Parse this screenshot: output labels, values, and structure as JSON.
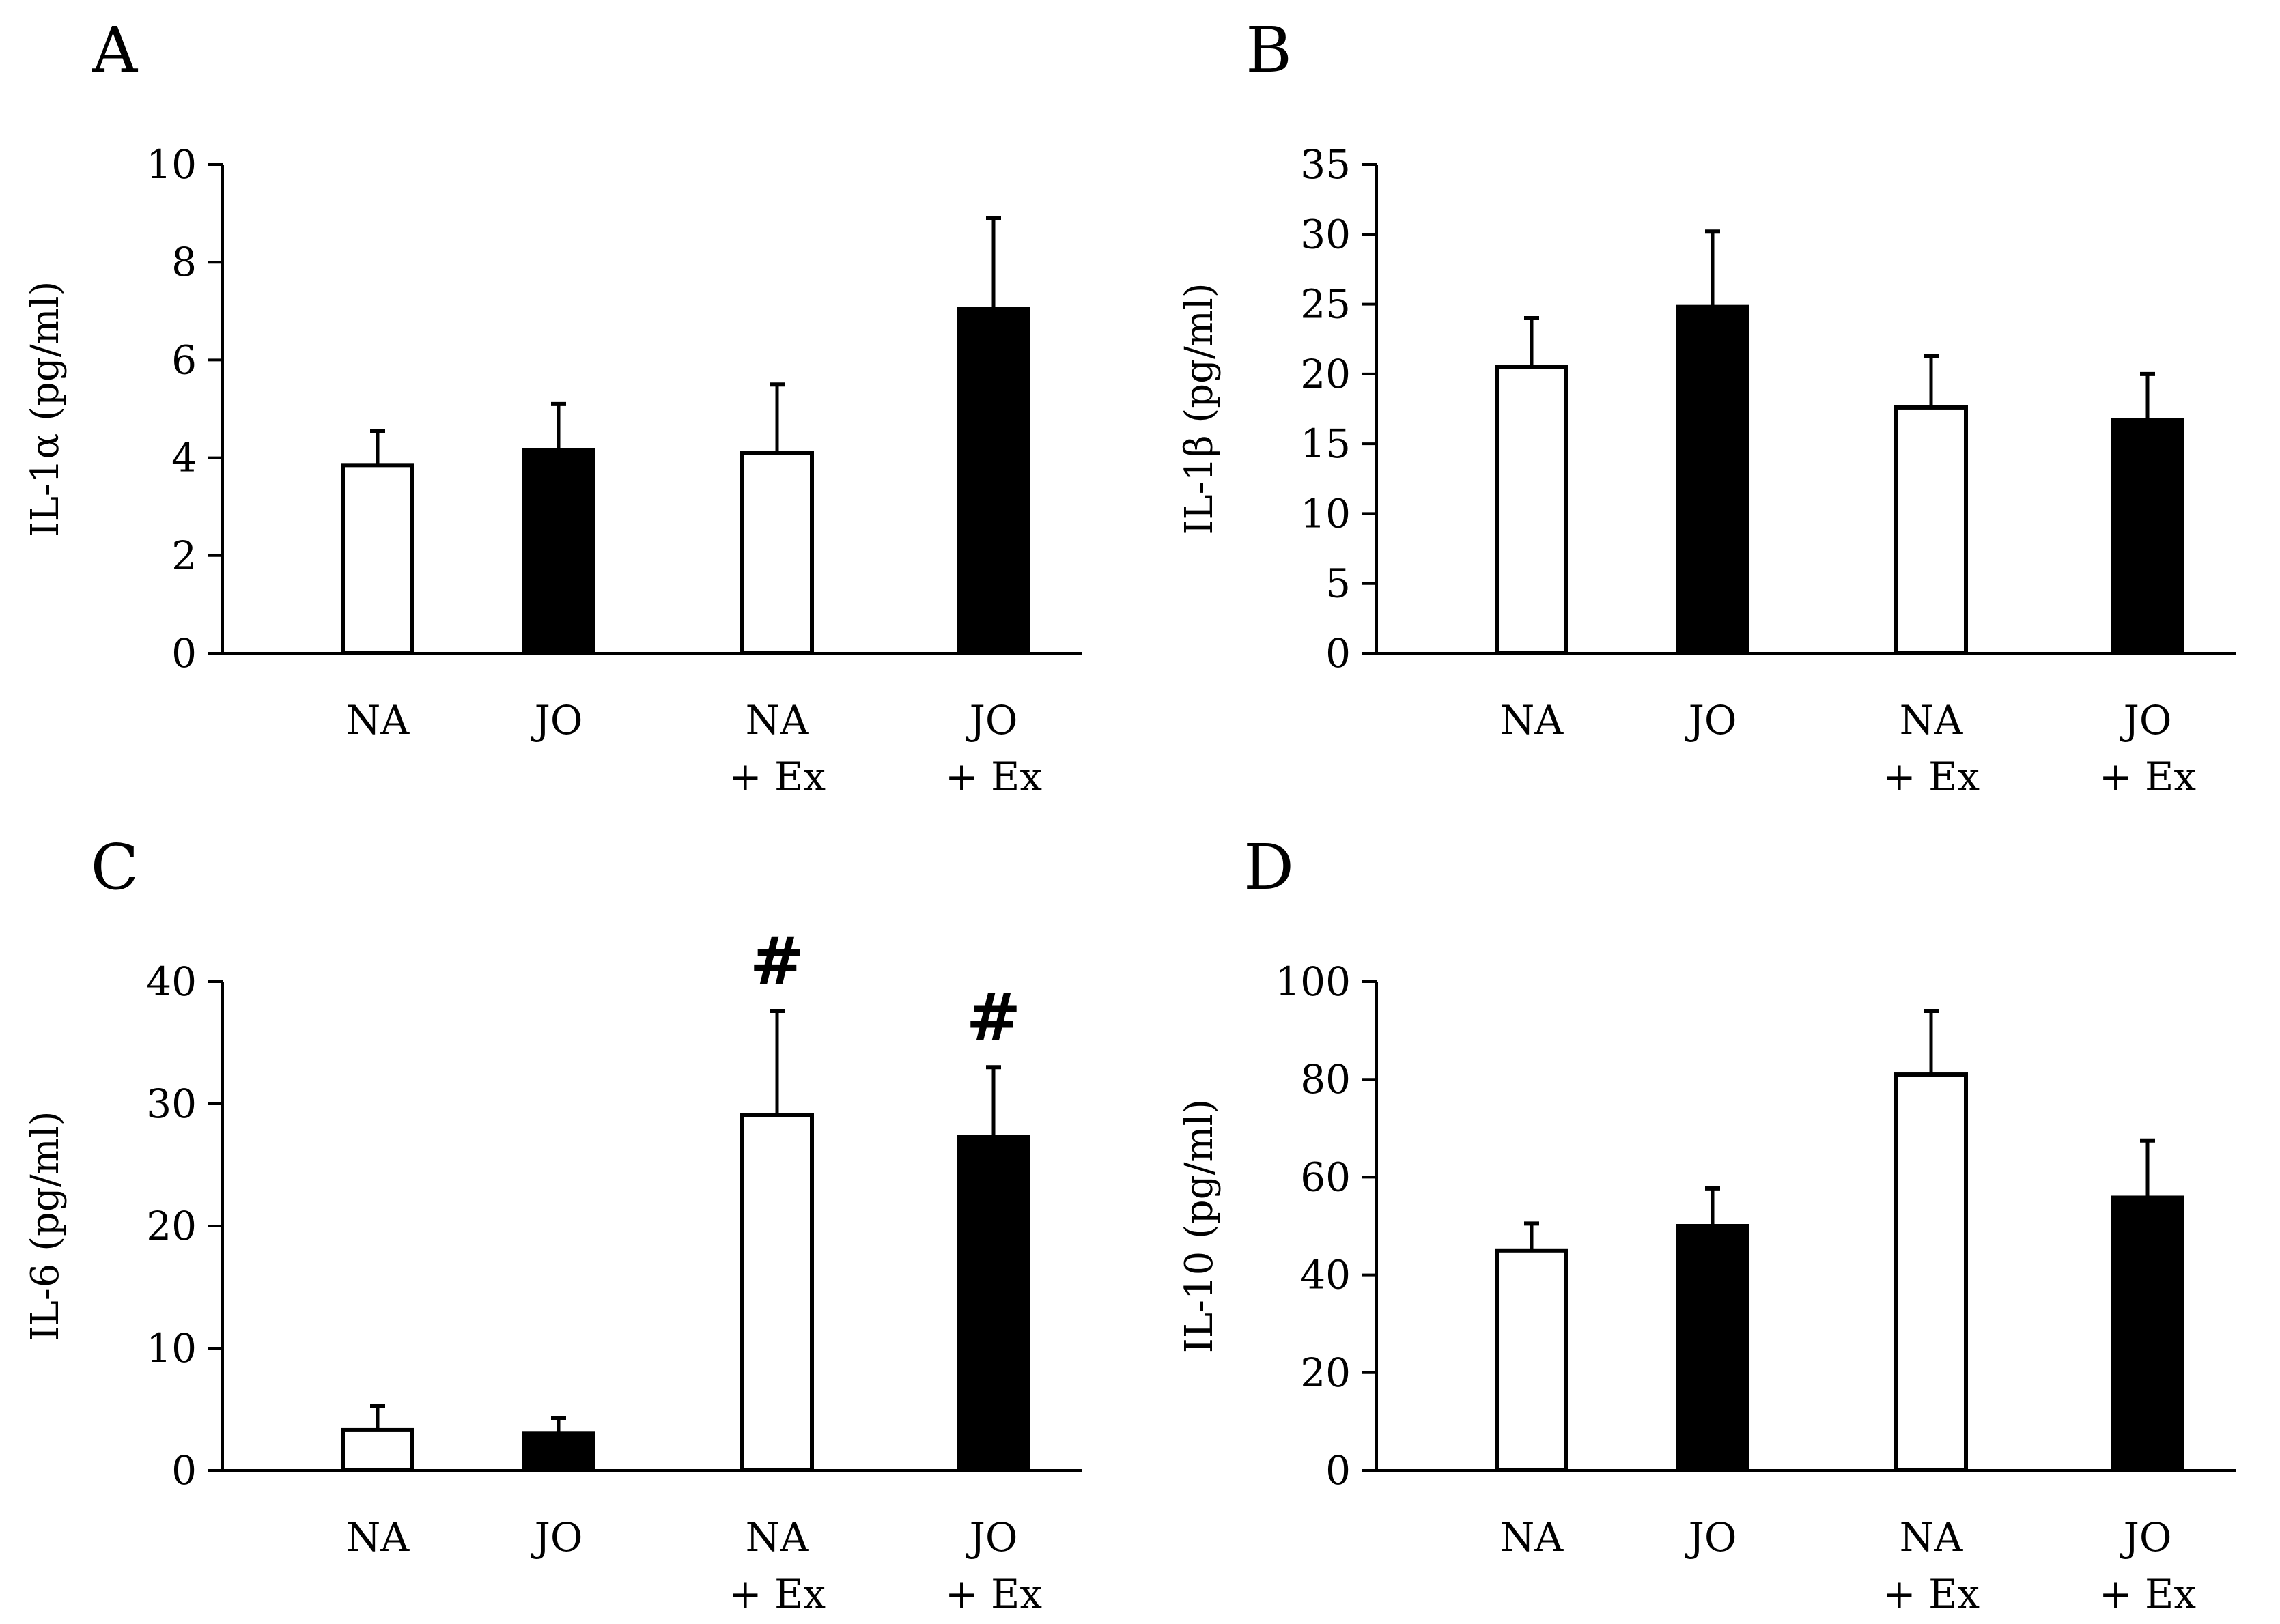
{
  "figure": {
    "fill_colors": {
      "NA": "#ffffff",
      "JO": "#000000"
    },
    "stroke_color": "#000000"
  },
  "chart_data": [
    {
      "panel": "A",
      "type": "bar",
      "ylabel": "IL-1α (pg/ml)",
      "ylim": [
        0,
        10
      ],
      "yticks": [
        0,
        2,
        4,
        6,
        8,
        10
      ],
      "categories": [
        {
          "line1": "NA",
          "line2": ""
        },
        {
          "line1": "JO",
          "line2": ""
        },
        {
          "line1": "NA",
          "line2": "+ Ex"
        },
        {
          "line1": "JO",
          "line2": "+ Ex"
        }
      ],
      "groups": [
        "NA",
        "JO",
        "NA",
        "JO"
      ],
      "values": [
        3.85,
        4.15,
        4.1,
        7.05
      ],
      "errors": [
        0.7,
        0.95,
        1.4,
        1.85
      ],
      "annotations": [
        "",
        "",
        "",
        ""
      ]
    },
    {
      "panel": "B",
      "type": "bar",
      "ylabel": "IL-1β (pg/ml)",
      "ylim": [
        0,
        35
      ],
      "yticks": [
        0,
        5,
        10,
        15,
        20,
        25,
        30,
        35
      ],
      "categories": [
        {
          "line1": "NA",
          "line2": ""
        },
        {
          "line1": "JO",
          "line2": ""
        },
        {
          "line1": "NA",
          "line2": "+ Ex"
        },
        {
          "line1": "JO",
          "line2": "+ Ex"
        }
      ],
      "groups": [
        "NA",
        "JO",
        "NA",
        "JO"
      ],
      "values": [
        20.5,
        24.8,
        17.6,
        16.7
      ],
      "errors": [
        3.5,
        5.4,
        3.7,
        3.3
      ],
      "annotations": [
        "",
        "",
        "",
        ""
      ]
    },
    {
      "panel": "C",
      "type": "bar",
      "ylabel": "IL-6 (pg/ml)",
      "ylim": [
        0,
        40
      ],
      "yticks": [
        0,
        10,
        20,
        30,
        40
      ],
      "categories": [
        {
          "line1": "NA",
          "line2": ""
        },
        {
          "line1": "JO",
          "line2": ""
        },
        {
          "line1": "NA",
          "line2": "+ Ex"
        },
        {
          "line1": "JO",
          "line2": "+ Ex"
        }
      ],
      "groups": [
        "NA",
        "JO",
        "NA",
        "JO"
      ],
      "values": [
        3.3,
        3.0,
        29.1,
        27.3
      ],
      "errors": [
        2.0,
        1.3,
        8.5,
        5.7
      ],
      "annotations": [
        "",
        "",
        "#",
        "#"
      ]
    },
    {
      "panel": "D",
      "type": "bar",
      "ylabel": "IL-10 (pg/ml)",
      "ylim": [
        0,
        100
      ],
      "yticks": [
        0,
        20,
        40,
        60,
        80,
        100
      ],
      "categories": [
        {
          "line1": "NA",
          "line2": ""
        },
        {
          "line1": "JO",
          "line2": ""
        },
        {
          "line1": "NA",
          "line2": "+ Ex"
        },
        {
          "line1": "JO",
          "line2": "+ Ex"
        }
      ],
      "groups": [
        "NA",
        "JO",
        "NA",
        "JO"
      ],
      "values": [
        45.0,
        50.0,
        81.0,
        55.8
      ],
      "errors": [
        5.5,
        7.7,
        13.0,
        11.7
      ],
      "annotations": [
        "",
        "",
        "",
        ""
      ]
    }
  ]
}
